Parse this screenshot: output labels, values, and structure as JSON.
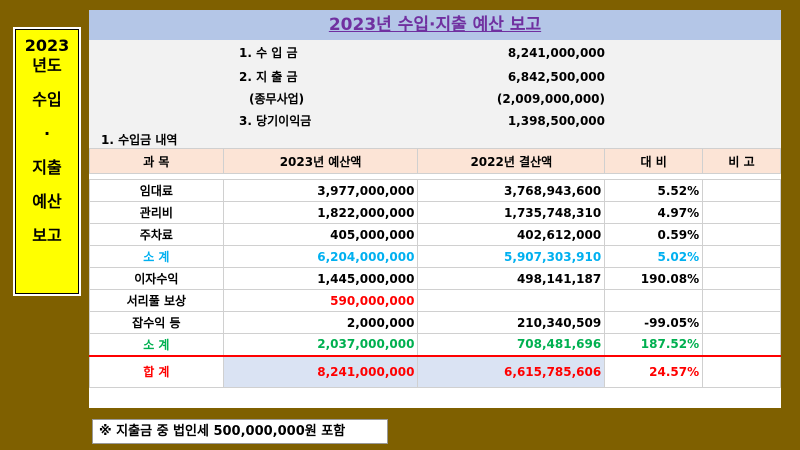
{
  "side_title": {
    "line1": "2023",
    "line2": "년도",
    "line3": "수입",
    "line4": "·",
    "line5": "지출",
    "line6": "예산",
    "line7": "보고"
  },
  "report_title": "2023년 수입·지출 예산 보고",
  "summary": [
    {
      "label": "1. 수 입 금",
      "value": "8,241,000,000"
    },
    {
      "label": "2. 지 출 금",
      "value": "6,842,500,000"
    },
    {
      "label": "(종무사업)",
      "value": "(2,009,000,000)"
    },
    {
      "label": "3. 당기이익금",
      "value": "1,398,500,000"
    }
  ],
  "section_title": "1. 수입금 내역",
  "columns": [
    "과    목",
    "2023년 예산액",
    "2022년 결산액",
    "대 비",
    "비 고"
  ],
  "rows": [
    {
      "name": "임대료",
      "budget": "3,977,000,000",
      "settle": "3,768,943,600",
      "ratio": "5.52%",
      "note": ""
    },
    {
      "name": "관리비",
      "budget": "1,822,000,000",
      "settle": "1,735,748,310",
      "ratio": "4.97%",
      "note": ""
    },
    {
      "name": "주차료",
      "budget": "405,000,000",
      "settle": "402,612,000",
      "ratio": "0.59%",
      "note": ""
    },
    {
      "name": "소    계",
      "budget": "6,204,000,000",
      "settle": "5,907,303,910",
      "ratio": "5.02%",
      "note": ""
    },
    {
      "name": "이자수익",
      "budget": "1,445,000,000",
      "settle": "498,141,187",
      "ratio": "190.08%",
      "note": ""
    },
    {
      "name": "서리풀 보상",
      "budget": "590,000,000",
      "settle": "",
      "ratio": "",
      "note": ""
    },
    {
      "name": "잡수익 등",
      "budget": "2,000,000",
      "settle": "210,340,509",
      "ratio": "-99.05%",
      "note": ""
    },
    {
      "name": "소    계",
      "budget": "2,037,000,000",
      "settle": "708,481,696",
      "ratio": "187.52%",
      "note": ""
    },
    {
      "name": "합    계",
      "budget": "8,241,000,000",
      "settle": "6,615,785,606",
      "ratio": "24.57%",
      "note": ""
    }
  ],
  "footnote": "※ 지출금 중 법인세 500,000,000원 포함",
  "colors": {
    "background": "#7f6000",
    "side_panel": "#ffff00",
    "title_bar": "#b4c6e7",
    "title_text": "#7030a0",
    "header_fill": "#fce4d6",
    "subtotal1": "#00b0f0",
    "subtotal2": "#00b050",
    "total": "#ff0000"
  }
}
